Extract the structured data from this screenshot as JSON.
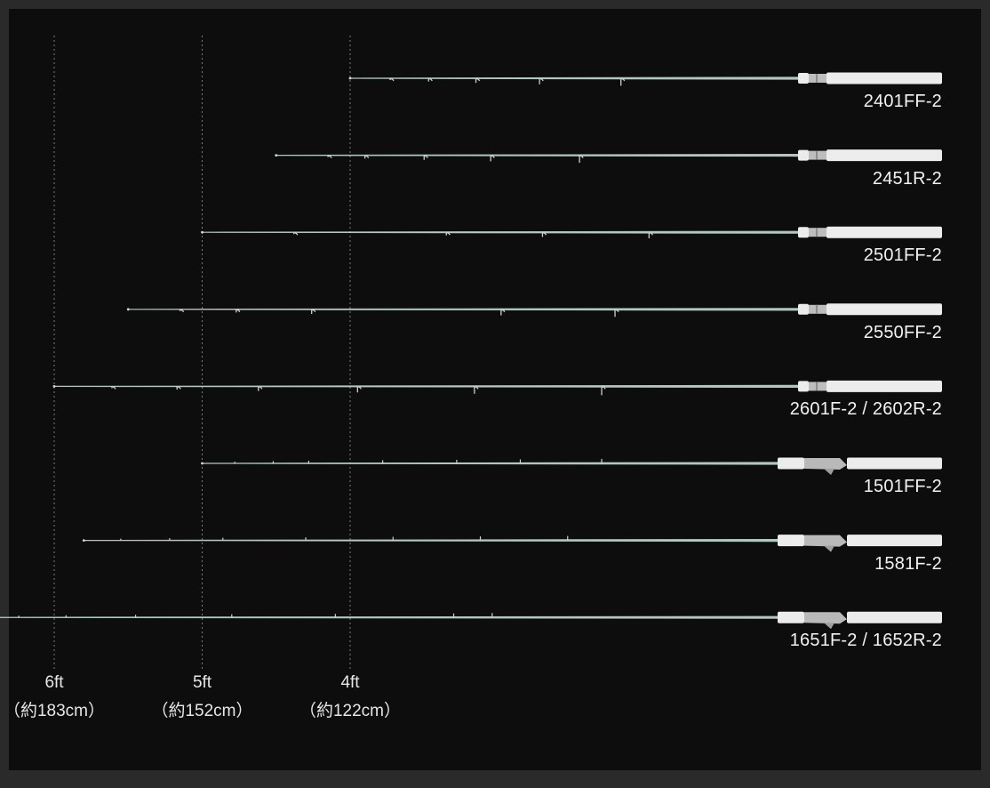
{
  "axis": {
    "unit": "ft",
    "ticks": [
      {
        "value": 6,
        "label": "6ft",
        "sublabel": "（約183cm）"
      },
      {
        "value": 5,
        "label": "5ft",
        "sublabel": "（約152cm）"
      },
      {
        "value": 4,
        "label": "4ft",
        "sublabel": "（約122cm）"
      }
    ]
  },
  "rods": [
    {
      "model": "2401FF-2",
      "length_ft": 4.0,
      "reel": "spinning",
      "guides": [
        0.27,
        0.53,
        0.85,
        1.28,
        1.83
      ]
    },
    {
      "model": "2451R-2",
      "length_ft": 4.5,
      "reel": "spinning",
      "guides": [
        0.35,
        0.6,
        1.0,
        1.45,
        2.05
      ]
    },
    {
      "model": "2501FF-2",
      "length_ft": 5.0,
      "reel": "spinning",
      "guides": [
        0.62,
        1.65,
        2.3,
        3.02
      ]
    },
    {
      "model": "2550FF-2",
      "length_ft": 5.5,
      "reel": "spinning",
      "guides": [
        0.35,
        0.73,
        1.24,
        2.52,
        3.29
      ]
    },
    {
      "model": "2601F-2 / 2602R-2",
      "length_ft": 6.0,
      "reel": "spinning",
      "guides": [
        0.39,
        0.83,
        1.38,
        2.05,
        2.84,
        3.7
      ]
    },
    {
      "model": "1501FF-2",
      "length_ft": 5.0,
      "reel": "baitcasting",
      "guides": [
        0.22,
        0.48,
        0.72,
        1.22,
        1.72,
        2.15,
        2.7
      ]
    },
    {
      "model": "1581F-2",
      "length_ft": 5.8,
      "reel": "baitcasting",
      "guides": [
        0.25,
        0.58,
        0.94,
        1.5,
        2.09,
        2.68,
        3.27
      ]
    },
    {
      "model": "1651F-2 / 1652R-2",
      "length_ft": 6.5,
      "reel": "baitcasting",
      "guides": [
        0.26,
        0.58,
        1.05,
        1.7,
        2.4,
        3.2,
        3.46
      ]
    }
  ],
  "colors": {
    "background": "#0d0d0d",
    "blank": "#cfe9e2",
    "handle": "#ececec",
    "gridline": "#7a7a7a",
    "text": "#f2f2f2"
  }
}
